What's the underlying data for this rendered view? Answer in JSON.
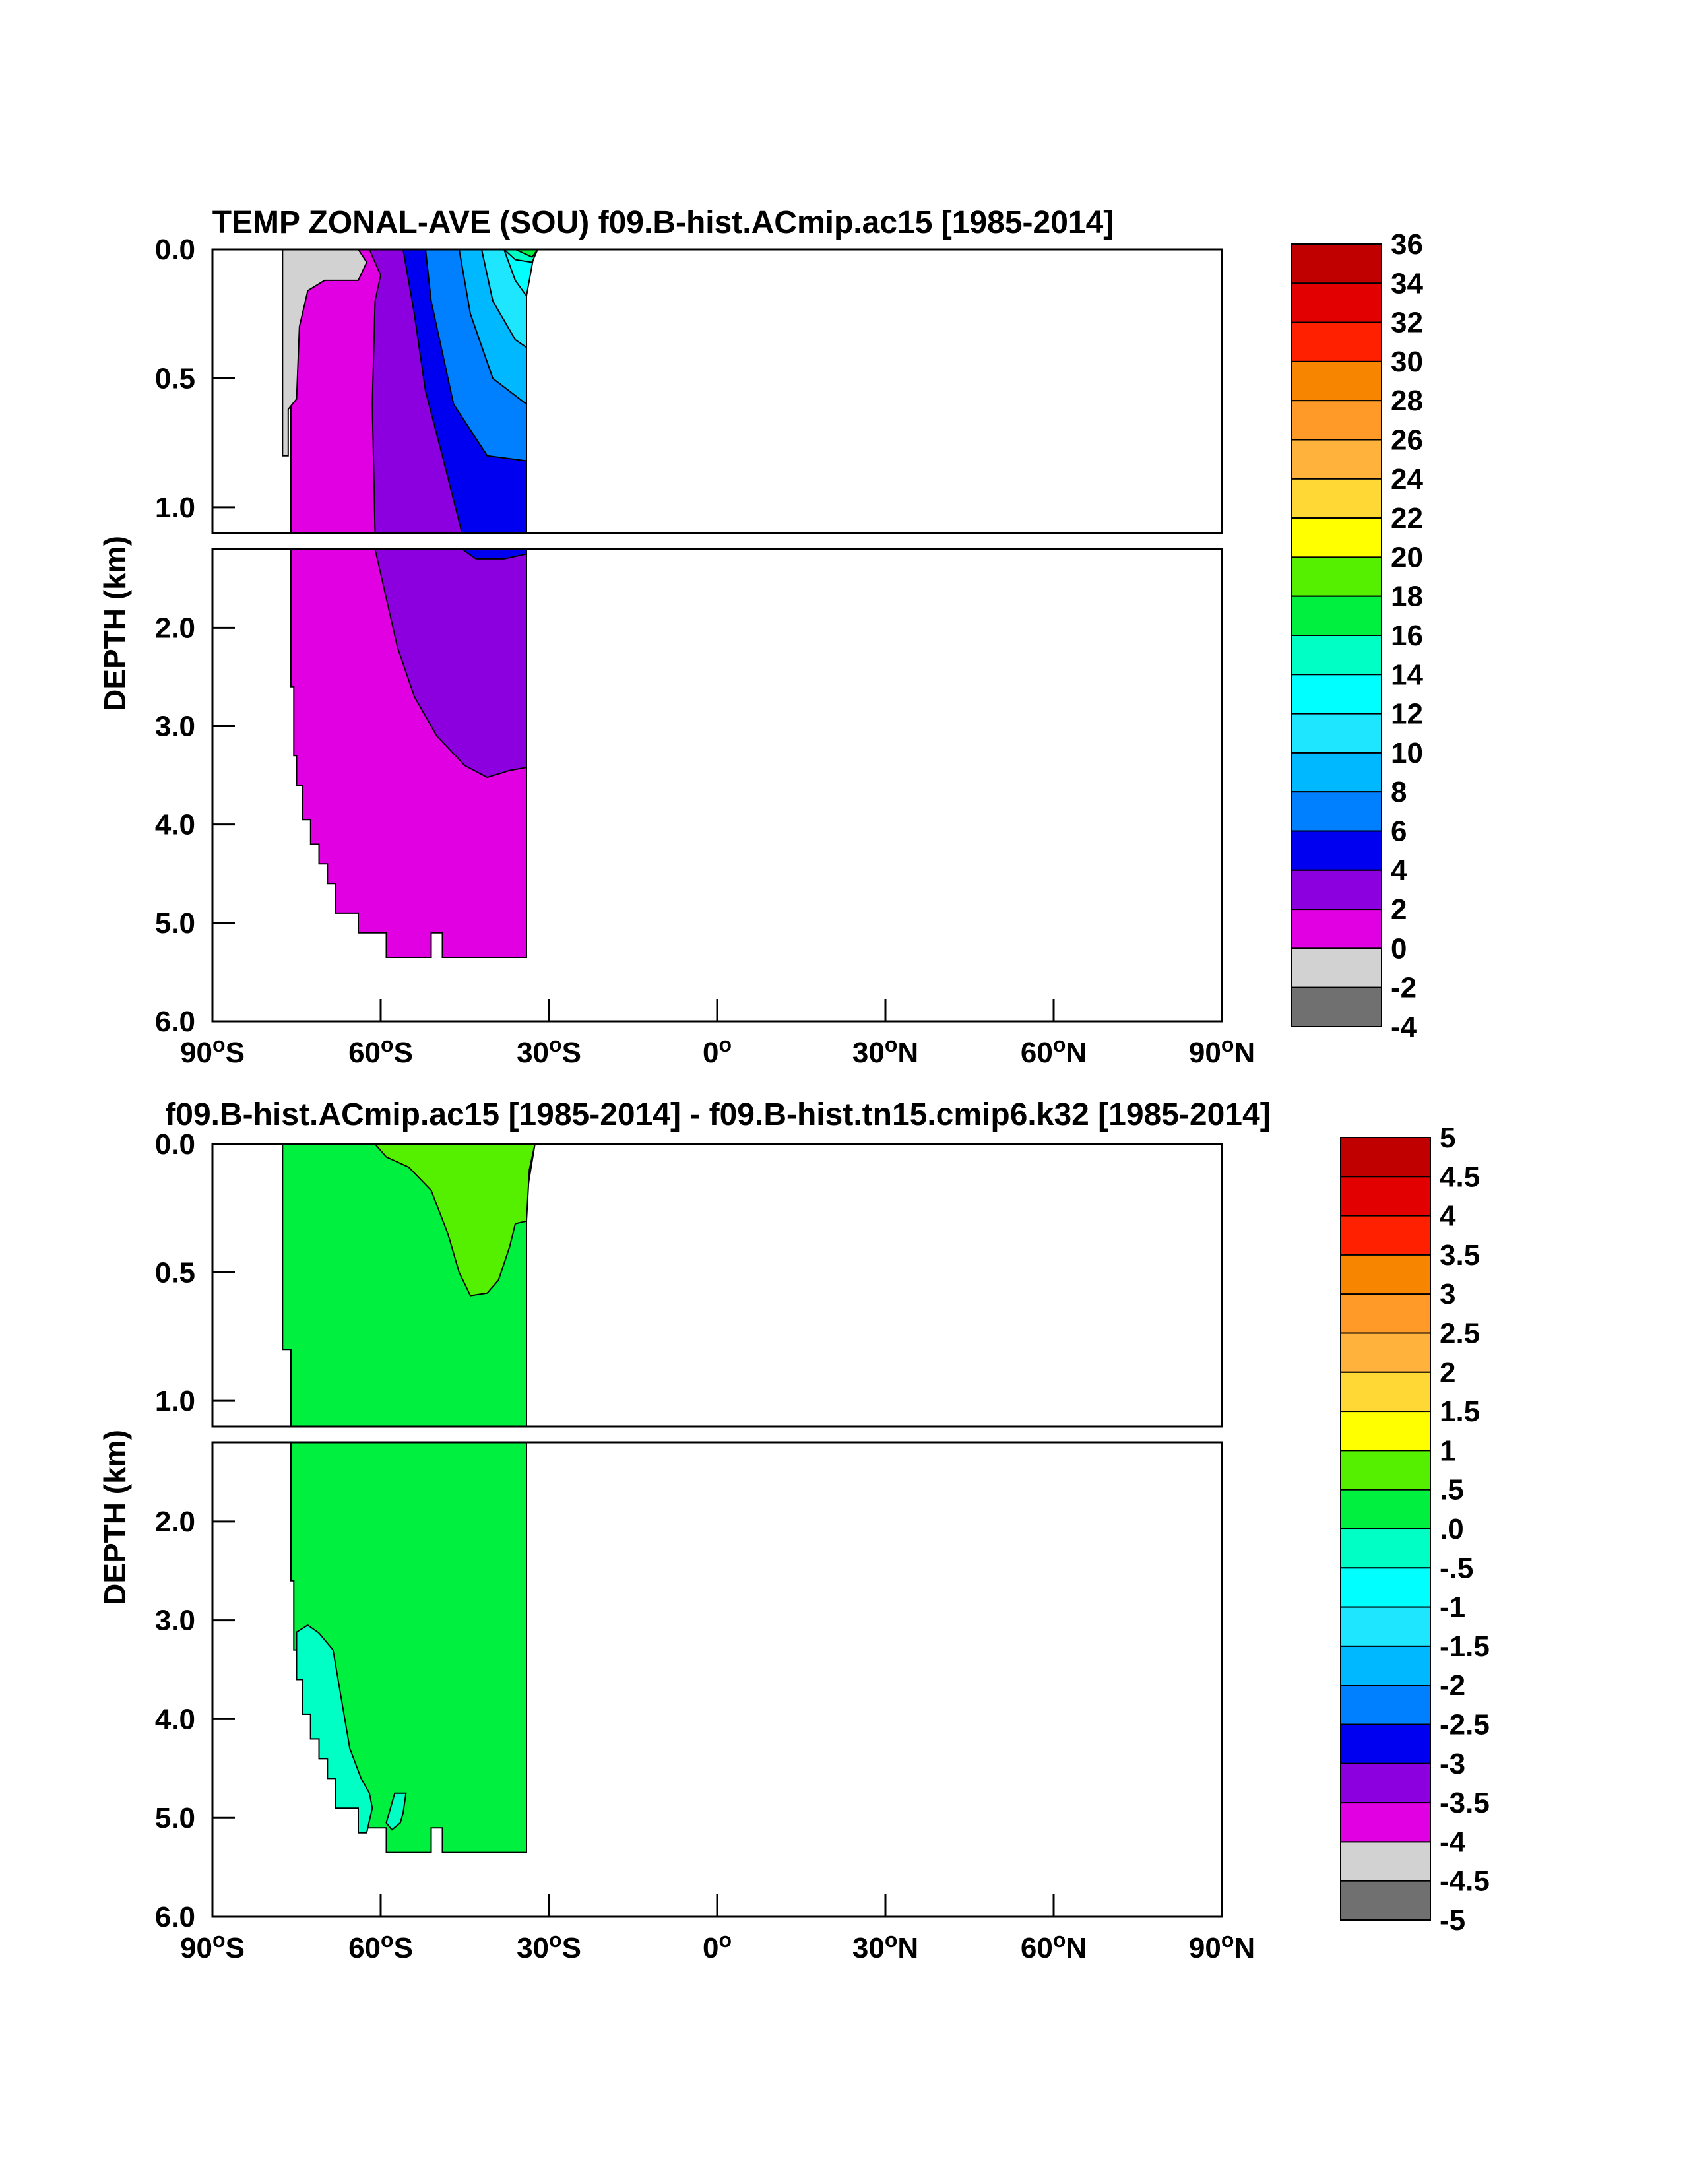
{
  "chart_data": [
    {
      "type": "contour",
      "title": "TEMP ZONAL-AVE (SOU) f09.B-hist.ACmip.ac15 [1985-2014]",
      "ylabel": "DEPTH (km)",
      "x_ticks": [
        "90°S",
        "60°S",
        "30°S",
        "0°",
        "30°N",
        "60°N",
        "90°N"
      ],
      "x_tick_values": [
        -90,
        -60,
        -30,
        0,
        30,
        60,
        90
      ],
      "y_ticks_top": [
        "0.0",
        "0.5",
        "1.0"
      ],
      "y_tick_values_top": [
        0.0,
        0.5,
        1.0
      ],
      "y_ticks_bottom": [
        "2.0",
        "3.0",
        "4.0",
        "5.0",
        "6.0"
      ],
      "y_tick_values_bottom": [
        2.0,
        3.0,
        4.0,
        5.0,
        6.0
      ],
      "xlim": [
        -90,
        90
      ],
      "ylim_top": [
        0.0,
        1.1
      ],
      "ylim_bottom": [
        1.2,
        6.0
      ],
      "colorbar_labels": [
        "36",
        "34",
        "32",
        "30",
        "28",
        "26",
        "24",
        "22",
        "20",
        "18",
        "16",
        "14",
        "12",
        "10",
        "8",
        "6",
        "4",
        "2",
        "0",
        "-2",
        "-4"
      ],
      "colorbar_colors": [
        "#c00000",
        "#e30000",
        "#ff2000",
        "#f78500",
        "#ff9a28",
        "#ffb23c",
        "#ffd836",
        "#ffff00",
        "#55f000",
        "#00f040",
        "#00ffc4",
        "#00ffff",
        "#1ee6ff",
        "#00b8ff",
        "#0080ff",
        "#0000f0",
        "#8c00e0",
        "#e100e1",
        "#d2d2d2",
        "#707070"
      ],
      "fields": {
        "top": [
          {
            "value": "0 to 2",
            "color": "#e100e1",
            "poly": [
              [
                -76,
                0.0
              ],
              [
                -60,
                0.0
              ],
              [
                -60,
                1.1
              ],
              [
                -76,
                1.1
              ]
            ]
          },
          {
            "value": "-2 to 0",
            "color": "#d2d2d2",
            "poly": [
              [
                -77.5,
                0.0
              ],
              [
                -64,
                0.0
              ],
              [
                -62.5,
                0.05
              ],
              [
                -64,
                0.12
              ],
              [
                -70,
                0.12
              ],
              [
                -73,
                0.16
              ],
              [
                -74.5,
                0.3
              ],
              [
                -75,
                0.58
              ],
              [
                -76.5,
                0.62
              ],
              [
                -76.5,
                0.8
              ],
              [
                -77.5,
                0.8
              ]
            ]
          },
          {
            "value": "2 to 4",
            "color": "#8c00e0",
            "poly": [
              [
                -62,
                0.0
              ],
              [
                -56,
                0.0
              ],
              [
                -54,
                0.25
              ],
              [
                -52,
                0.55
              ],
              [
                -49,
                0.8
              ],
              [
                -45.5,
                1.1
              ],
              [
                -61,
                1.1
              ],
              [
                -61.5,
                0.6
              ],
              [
                -61,
                0.2
              ],
              [
                -60,
                0.1
              ]
            ]
          },
          {
            "value": "4 to 6",
            "color": "#0000f0",
            "poly": [
              [
                -56,
                0.0
              ],
              [
                -52,
                0.0
              ],
              [
                -51,
                0.2
              ],
              [
                -47,
                0.6
              ],
              [
                -41,
                0.8
              ],
              [
                -34,
                0.82
              ],
              [
                -34,
                1.1
              ],
              [
                -45.5,
                1.1
              ],
              [
                -49,
                0.8
              ],
              [
                -52,
                0.55
              ],
              [
                -54,
                0.25
              ]
            ]
          },
          {
            "value": "6 to 8",
            "color": "#0080ff",
            "poly": [
              [
                -52,
                0.0
              ],
              [
                -46,
                0.0
              ],
              [
                -44,
                0.25
              ],
              [
                -40,
                0.5
              ],
              [
                -34,
                0.6
              ],
              [
                -34,
                0.82
              ],
              [
                -41,
                0.8
              ],
              [
                -47,
                0.6
              ],
              [
                -51,
                0.2
              ]
            ]
          },
          {
            "value": "8 to 10",
            "color": "#00b8ff",
            "poly": [
              [
                -46,
                0.0
              ],
              [
                -42,
                0.0
              ],
              [
                -40,
                0.2
              ],
              [
                -36,
                0.35
              ],
              [
                -34,
                0.38
              ],
              [
                -34,
                0.6
              ],
              [
                -40,
                0.5
              ],
              [
                -44,
                0.25
              ]
            ]
          },
          {
            "value": "10 to 12",
            "color": "#1ee6ff",
            "poly": [
              [
                -42,
                0.0
              ],
              [
                -38,
                0.0
              ],
              [
                -36,
                0.12
              ],
              [
                -34,
                0.18
              ],
              [
                -34,
                0.38
              ],
              [
                -36,
                0.35
              ],
              [
                -40,
                0.2
              ]
            ]
          },
          {
            "value": "12 to 14",
            "color": "#00ffff",
            "poly": [
              [
                -38,
                0.0
              ],
              [
                -32.5,
                0.0
              ],
              [
                -34,
                0.18
              ],
              [
                -36,
                0.12
              ]
            ]
          },
          {
            "value": "14 to 16",
            "color": "#00ffc4",
            "poly": [
              [
                -38,
                0.0
              ],
              [
                -32,
                0.0
              ],
              [
                -33,
                0.05
              ],
              [
                -36,
                0.04
              ]
            ]
          },
          {
            "value": "16 to 18",
            "color": "#00f040",
            "poly": [
              [
                -36,
                0.0
              ],
              [
                -32,
                0.0
              ],
              [
                -33,
                0.03
              ]
            ]
          }
        ],
        "bottom": [
          {
            "value": "0 to 2",
            "color": "#e100e1",
            "poly": [
              [
                -76,
                1.2
              ],
              [
                -34,
                1.2
              ],
              [
                -34,
                5.35
              ],
              [
                -49,
                5.35
              ],
              [
                -49,
                5.1
              ],
              [
                -51,
                5.1
              ],
              [
                -51,
                5.35
              ],
              [
                -59,
                5.35
              ],
              [
                -59,
                5.1
              ],
              [
                -64,
                5.1
              ],
              [
                -64,
                4.9
              ],
              [
                -68,
                4.9
              ],
              [
                -68,
                4.6
              ],
              [
                -69.5,
                4.6
              ],
              [
                -69.5,
                4.4
              ],
              [
                -71,
                4.4
              ],
              [
                -71,
                4.2
              ],
              [
                -72.5,
                4.2
              ],
              [
                -72.5,
                3.95
              ],
              [
                -74,
                3.95
              ],
              [
                -74,
                3.6
              ],
              [
                -75,
                3.6
              ],
              [
                -75,
                3.3
              ],
              [
                -75.5,
                3.3
              ],
              [
                -75.5,
                2.6
              ],
              [
                -76,
                2.6
              ]
            ]
          },
          {
            "value": "2 to 4",
            "color": "#8c00e0",
            "poly": [
              [
                -61,
                1.2
              ],
              [
                -34,
                1.2
              ],
              [
                -34,
                3.42
              ],
              [
                -37,
                3.45
              ],
              [
                -41,
                3.52
              ],
              [
                -45,
                3.4
              ],
              [
                -50,
                3.1
              ],
              [
                -54,
                2.7
              ],
              [
                -57,
                2.2
              ],
              [
                -59,
                1.7
              ]
            ]
          },
          {
            "value": "4 to 6",
            "color": "#0000f0",
            "poly": [
              [
                -45.5,
                1.2
              ],
              [
                -34,
                1.2
              ],
              [
                -34,
                1.25
              ],
              [
                -38,
                1.3
              ],
              [
                -43,
                1.3
              ]
            ]
          }
        ]
      }
    },
    {
      "type": "contour",
      "title": "f09.B-hist.ACmip.ac15 [1985-2014] - f09.B-hist.tn15.cmip6.k32 [1985-2014]",
      "ylabel": "DEPTH (km)",
      "x_ticks": [
        "90°S",
        "60°S",
        "30°S",
        "0°",
        "30°N",
        "60°N",
        "90°N"
      ],
      "x_tick_values": [
        -90,
        -60,
        -30,
        0,
        30,
        60,
        90
      ],
      "y_ticks_top": [
        "0.0",
        "0.5",
        "1.0"
      ],
      "y_tick_values_top": [
        0.0,
        0.5,
        1.0
      ],
      "y_ticks_bottom": [
        "2.0",
        "3.0",
        "4.0",
        "5.0",
        "6.0"
      ],
      "y_tick_values_bottom": [
        2.0,
        3.0,
        4.0,
        5.0,
        6.0
      ],
      "xlim": [
        -90,
        90
      ],
      "ylim_top": [
        0.0,
        1.1
      ],
      "ylim_bottom": [
        1.2,
        6.0
      ],
      "colorbar_labels": [
        "5",
        "4.5",
        "4",
        "3.5",
        "3",
        "2.5",
        "2",
        "1.5",
        "1",
        ".5",
        ".0",
        "-.5",
        "-1",
        "-1.5",
        "-2",
        "-2.5",
        "-3",
        "-3.5",
        "-4",
        "-4.5",
        "-5"
      ],
      "colorbar_colors": [
        "#c00000",
        "#e30000",
        "#ff2000",
        "#f78500",
        "#ff9a28",
        "#ffb23c",
        "#ffd836",
        "#ffff00",
        "#55f000",
        "#00f040",
        "#00ffc4",
        "#00ffff",
        "#1ee6ff",
        "#00b8ff",
        "#0080ff",
        "#0000f0",
        "#8c00e0",
        "#e100e1",
        "#d2d2d2",
        "#707070"
      ],
      "fields": {
        "top": [
          {
            "value": "0 to .5",
            "color": "#00f040",
            "poly": [
              [
                -77.5,
                0.0
              ],
              [
                -32.5,
                0.0
              ],
              [
                -34,
                0.2
              ],
              [
                -34,
                1.1
              ],
              [
                -76,
                1.1
              ],
              [
                -76,
                0.8
              ],
              [
                -77.5,
                0.8
              ]
            ]
          },
          {
            "value": ".5 to 1",
            "color": "#55f000",
            "poly": [
              [
                -61,
                0.0
              ],
              [
                -32.5,
                0.0
              ],
              [
                -33.5,
                0.1
              ],
              [
                -34,
                0.3
              ],
              [
                -36,
                0.31
              ],
              [
                -37,
                0.4
              ],
              [
                -39,
                0.53
              ],
              [
                -41,
                0.58
              ],
              [
                -44,
                0.59
              ],
              [
                -46,
                0.5
              ],
              [
                -48,
                0.35
              ],
              [
                -51,
                0.18
              ],
              [
                -55,
                0.09
              ],
              [
                -59,
                0.05
              ]
            ]
          }
        ],
        "bottom": [
          {
            "value": "0 to .5",
            "color": "#00f040",
            "poly": [
              [
                -76,
                1.2
              ],
              [
                -34,
                1.2
              ],
              [
                -34,
                5.35
              ],
              [
                -49,
                5.35
              ],
              [
                -49,
                5.1
              ],
              [
                -51,
                5.1
              ],
              [
                -51,
                5.35
              ],
              [
                -59,
                5.35
              ],
              [
                -59,
                5.1
              ],
              [
                -64,
                5.1
              ],
              [
                -64,
                4.9
              ],
              [
                -68,
                4.9
              ],
              [
                -68,
                4.6
              ],
              [
                -69.5,
                4.6
              ],
              [
                -69.5,
                4.4
              ],
              [
                -71,
                4.4
              ],
              [
                -71,
                4.2
              ],
              [
                -72.5,
                4.2
              ],
              [
                -72.5,
                3.95
              ],
              [
                -74,
                3.95
              ],
              [
                -74,
                3.6
              ],
              [
                -75,
                3.6
              ],
              [
                -75,
                3.3
              ],
              [
                -75.5,
                3.3
              ],
              [
                -75.5,
                2.6
              ],
              [
                -76,
                2.6
              ]
            ]
          },
          {
            "value": "-.5 to 0",
            "color": "#00ffc4",
            "poly": [
              [
                -75,
                3.12
              ],
              [
                -73,
                3.05
              ],
              [
                -71,
                3.13
              ],
              [
                -68.5,
                3.3
              ],
              [
                -67,
                3.8
              ],
              [
                -65.5,
                4.3
              ],
              [
                -63.5,
                4.6
              ],
              [
                -62,
                4.75
              ],
              [
                -61.5,
                4.9
              ],
              [
                -62.5,
                5.15
              ],
              [
                -64,
                5.15
              ],
              [
                -64,
                4.9
              ],
              [
                -68,
                4.9
              ],
              [
                -68,
                4.6
              ],
              [
                -69.5,
                4.6
              ],
              [
                -69.5,
                4.4
              ],
              [
                -71,
                4.4
              ],
              [
                -71,
                4.2
              ],
              [
                -72.5,
                4.2
              ],
              [
                -72.5,
                3.95
              ],
              [
                -74,
                3.95
              ],
              [
                -74,
                3.6
              ],
              [
                -75,
                3.6
              ]
            ]
          },
          {
            "value": "-.5 to 0",
            "color": "#00ffc4",
            "poly": [
              [
                -59,
                5.05
              ],
              [
                -57.5,
                4.75
              ],
              [
                -55.5,
                4.75
              ],
              [
                -56,
                4.95
              ],
              [
                -56.5,
                5.05
              ],
              [
                -58,
                5.12
              ]
            ]
          }
        ]
      }
    }
  ]
}
